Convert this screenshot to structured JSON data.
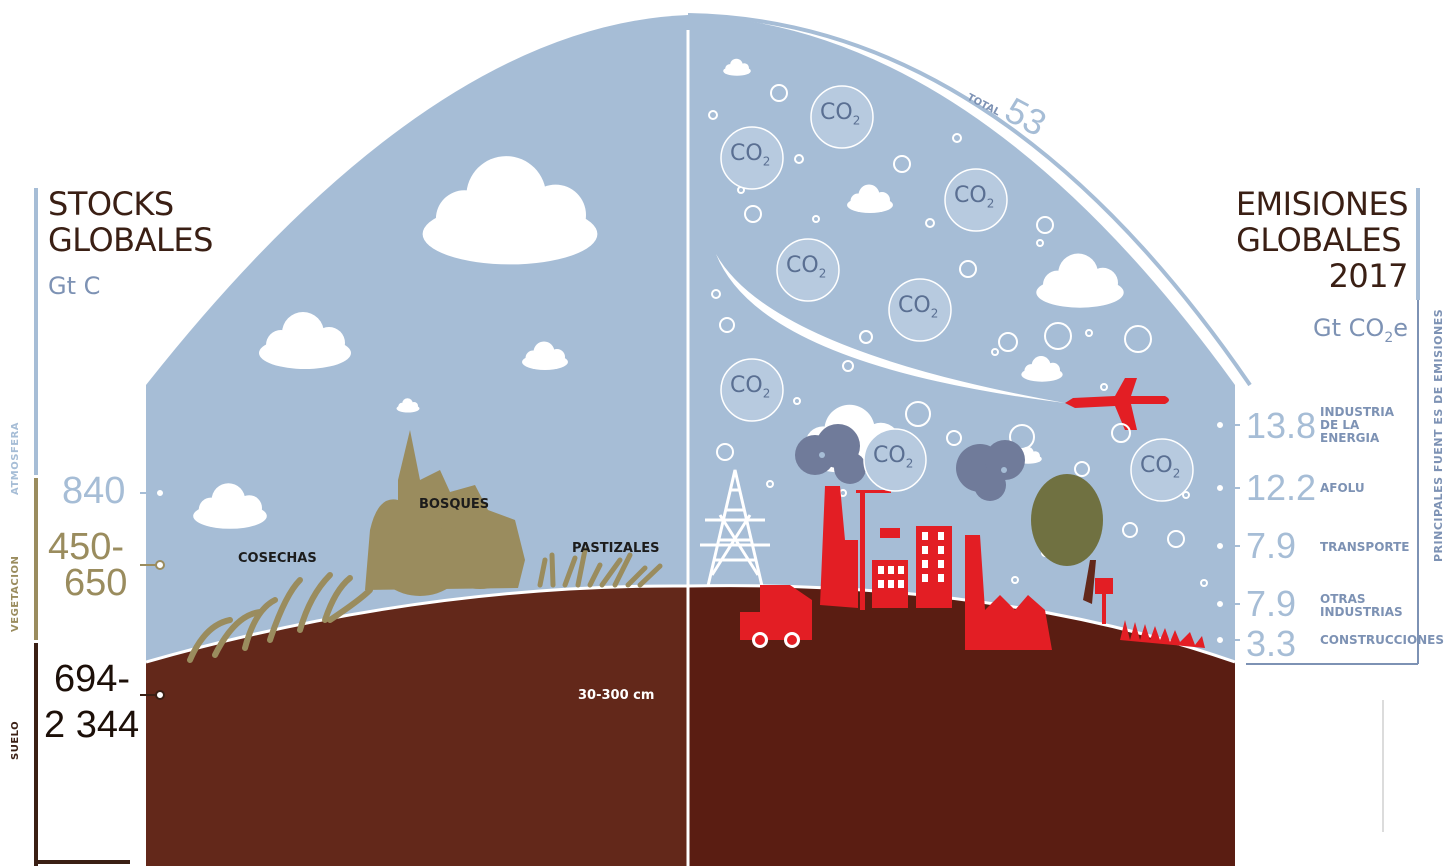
{
  "left": {
    "title_line1": "STOCKS",
    "title_line2": "GLOBALES",
    "unit": "Gt C",
    "atmosphere": {
      "label": "ATMOSFERA",
      "value": "840"
    },
    "vegetation": {
      "label": "VEGETACION",
      "value_line1": "450-",
      "value_line2": "650"
    },
    "soil": {
      "label": "SUELO",
      "value_line1": "694-",
      "value_line2": "2 344"
    }
  },
  "scene": {
    "forests": "BOSQUES",
    "grasslands": "PASTIZALES",
    "crops": "COSECHAS",
    "soil_depth": "30-300 cm",
    "total_prefix": "TOTAL",
    "total_value": "53",
    "co2_label": "CO",
    "co2_sub": "2"
  },
  "right": {
    "title_line1": "EMISIONES",
    "title_line2": "GLOBALES",
    "title_line3": "2017",
    "unit_prefix": "Gt CO",
    "unit_sub": "2",
    "unit_suffix": "e",
    "vertical_label": "PRINCIPALES FUENT ES DE EMISIONES",
    "sources": [
      {
        "value": "13.8",
        "label_line1": "INDUSTRIA",
        "label_line2": "DE LA",
        "label_line3": "ENERGIA"
      },
      {
        "value": "12.2",
        "label_line1": "AFOLU"
      },
      {
        "value": "7.9",
        "label_line1": "TRANSPORTE"
      },
      {
        "value": "7.9",
        "label_line1": "OTRAS",
        "label_line2": "INDUSTRIAS"
      },
      {
        "value": "3.3",
        "label_line1": "CONSTRUCCIONES"
      }
    ]
  },
  "colors": {
    "sky": "#a6bdd6",
    "soil_left": "#63281a",
    "soil_right": "#5a1d12",
    "vegetation": "#9a8c5e",
    "industry_red": "#e31e24",
    "text_dark": "#3a1f14",
    "accent_blue": "#7d92b4"
  }
}
